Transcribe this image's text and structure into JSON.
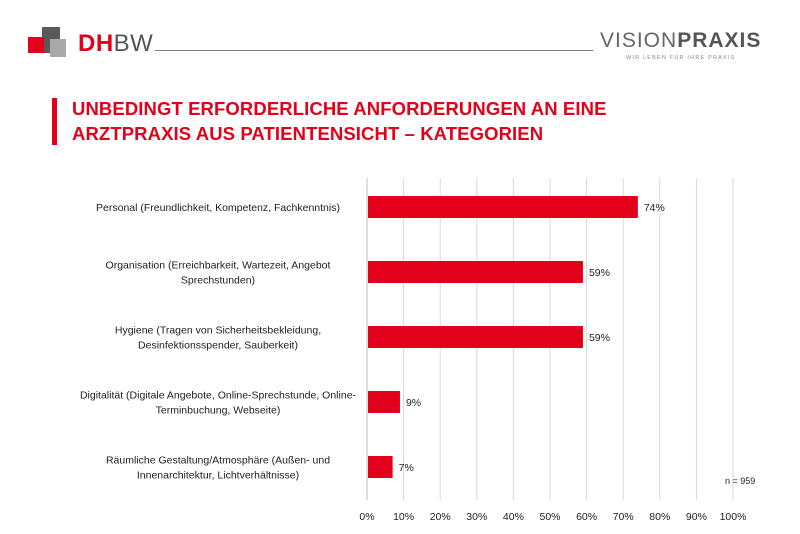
{
  "header": {
    "logo_dh": "DH",
    "logo_bw": "BW",
    "vp_light": "VISION",
    "vp_dark": "PRAXIS",
    "vp_tagline": "WIR LEBEN FÜR IHRE PRAXIS"
  },
  "title_line1": "UNBEDINGT ERFORDERLICHE ANFORDERUNGEN AN EINE",
  "title_line2": "ARZTPRAXIS AUS PATIENTENSICHT – KATEGORIEN",
  "sample_size": "n = 959",
  "colors": {
    "accent": "#e2001a",
    "grid": "#d9d9d9"
  },
  "chart_data": {
    "type": "bar",
    "orientation": "horizontal",
    "categories": [
      [
        "Personal (Freundlichkeit, Kompetenz, Fachkenntnis)"
      ],
      [
        "Organisation (Erreichbarkeit, Wartezeit, Angebot",
        "Sprechstunden)"
      ],
      [
        "Hygiene (Tragen von Sicherheitsbekleidung,",
        "Desinfektionsspender, Sauberkeit)"
      ],
      [
        "Digitalität (Digitale Angebote, Online-Sprechstunde, Online-",
        "Terminbuchung, Webseite)"
      ],
      [
        "Räumliche Gestaltung/Atmosphäre (Außen- und",
        "Innenarchitektur, Lichtverhältnisse)"
      ]
    ],
    "values": [
      74,
      59,
      59,
      9,
      7
    ],
    "value_labels": [
      "74%",
      "59%",
      "59%",
      "9%",
      "7%"
    ],
    "xlim": [
      0,
      100
    ],
    "xticks": [
      0,
      10,
      20,
      30,
      40,
      50,
      60,
      70,
      80,
      90,
      100
    ],
    "xtick_labels": [
      "0%",
      "10%",
      "20%",
      "30%",
      "40%",
      "50%",
      "60%",
      "70%",
      "80%",
      "90%",
      "100%"
    ],
    "grid": true
  }
}
